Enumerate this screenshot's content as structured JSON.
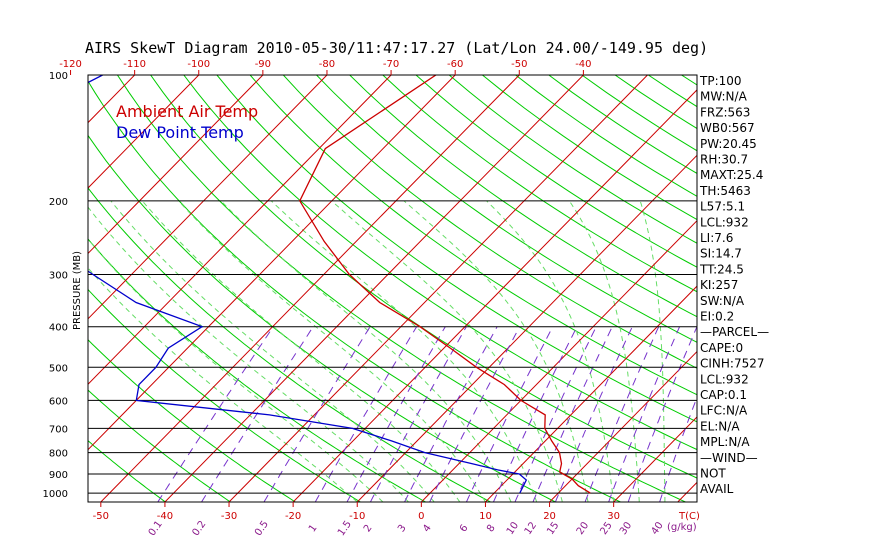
{
  "title": "AIRS SkewT Diagram 2010-05-30/11:47:17.27 (Lat/Lon 24.00/-149.95 deg)",
  "colors": {
    "temperature": "#cc0000",
    "dewpoint": "#0000cc",
    "isotherm": "#cc0000",
    "dry_adiabat": "#00cc00",
    "moist_adiabat": "#66dd66",
    "mixing_ratio": "#7733cc",
    "isobar": "#000000",
    "bottom_temp_labels": "#cc0000",
    "mixing_ratio_labels": "#8b1a8b"
  },
  "legend": {
    "ambient": "Ambient Air Temp",
    "dewpoint": "Dew Point Temp"
  },
  "y_axis": {
    "label": "PRESSURE (MB)",
    "ticks": [
      "100",
      "200",
      "300",
      "400",
      "500",
      "600",
      "700",
      "800",
      "900",
      "1000"
    ]
  },
  "top_axis": {
    "ticks": [
      "-120",
      "-110",
      "-100",
      "-90",
      "-80",
      "-70",
      "-60",
      "-50",
      "-40"
    ]
  },
  "bottom_axis": {
    "ticks": [
      "-50",
      "-40",
      "-30",
      "-20",
      "-10",
      "0",
      "10",
      "20",
      "30"
    ],
    "unit": "T(C)"
  },
  "mixing_ratio_axis": {
    "ticks": [
      "0.1",
      "0.2",
      "0.5",
      "1",
      "1.5",
      "2",
      "3",
      "4",
      "6",
      "8",
      "10",
      "12",
      "15",
      "20",
      "25",
      "30",
      "40"
    ],
    "unit": "(g/kg)"
  },
  "indices": [
    "TP:100",
    "MW:N/A",
    "FRZ:563",
    "WB0:567",
    "PW:20.45",
    "RH:30.7",
    "MAXT:25.4",
    "TH:5463",
    "L57:5.1",
    "LCL:932",
    "LI:7.6",
    "SI:14.7",
    "TT:24.5",
    "KI:257",
    "SW:N/A",
    "EI:0.2",
    "—PARCEL—",
    "CAPE:0",
    "CINH:7527",
    "LCL:932",
    "CAP:0.1",
    "LFC:N/A",
    "EL:N/A",
    "MPL:N/A",
    "—WIND—",
    "NOT",
    "AVAIL"
  ],
  "chart_data": {
    "type": "line",
    "title": "AIRS SkewT Diagram 2010-05-30/11:47:17.27 (Lat/Lon 24.00/-149.95 deg)",
    "ylabel": "PRESSURE (MB)",
    "xlabel": "T(C)",
    "y_scale": "log",
    "ylim": [
      1050,
      100
    ],
    "xlim_bottom": [
      -52,
      43
    ],
    "grid": true,
    "legend": "top-left",
    "series": [
      {
        "name": "Ambient Air Temp",
        "points": [
          [
            100,
            -63
          ],
          [
            150,
            -69
          ],
          [
            200,
            -65
          ],
          [
            250,
            -55
          ],
          [
            300,
            -46
          ],
          [
            350,
            -37
          ],
          [
            400,
            -27
          ],
          [
            450,
            -19
          ],
          [
            500,
            -12
          ],
          [
            550,
            -5
          ],
          [
            600,
            0
          ],
          [
            650,
            6
          ],
          [
            700,
            8
          ],
          [
            750,
            11
          ],
          [
            800,
            14
          ],
          [
            850,
            16
          ],
          [
            890,
            17
          ],
          [
            925,
            20
          ],
          [
            960,
            22
          ],
          [
            1000,
            25
          ]
        ]
      },
      {
        "name": "Dew Point Temp",
        "points": [
          [
            100,
            -115
          ],
          [
            150,
            -126
          ],
          [
            200,
            -113
          ],
          [
            230,
            -105
          ],
          [
            260,
            -96
          ],
          [
            300,
            -86
          ],
          [
            350,
            -75
          ],
          [
            400,
            -61
          ],
          [
            450,
            -63
          ],
          [
            500,
            -62
          ],
          [
            550,
            -62
          ],
          [
            600,
            -60
          ],
          [
            650,
            -37
          ],
          [
            700,
            -22
          ],
          [
            750,
            -14
          ],
          [
            800,
            -7
          ],
          [
            850,
            2
          ],
          [
            880,
            7
          ],
          [
            900,
            11
          ],
          [
            930,
            13
          ],
          [
            1000,
            14
          ]
        ]
      }
    ]
  }
}
